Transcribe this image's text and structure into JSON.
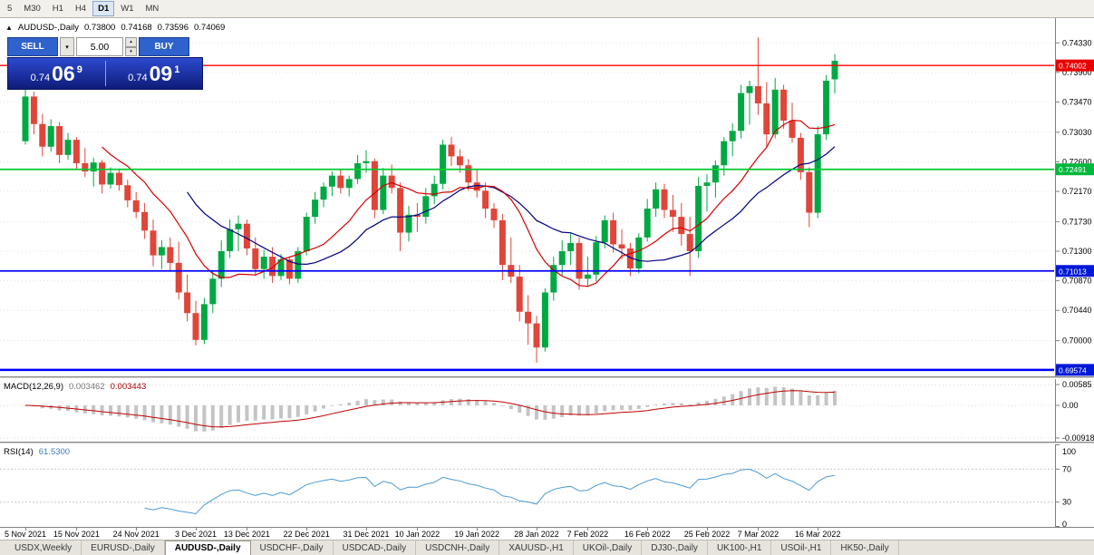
{
  "toolbar": {
    "timeframes": [
      "5",
      "M30",
      "H1",
      "H4",
      "D1",
      "W1",
      "MN"
    ],
    "active": "D1"
  },
  "header": {
    "symbol": "AUDUSD-,Daily",
    "open": "0.73800",
    "high": "0.74168",
    "low": "0.73596",
    "close": "0.74069"
  },
  "trade_widget": {
    "sell_label": "SELL",
    "buy_label": "BUY",
    "volume": "5.00",
    "sell_price_base": "0.74",
    "sell_price_pips": "06",
    "sell_price_point": "9",
    "buy_price_base": "0.74",
    "buy_price_pips": "09",
    "buy_price_point": "1"
  },
  "price_scale": {
    "ticks": [
      "0.74330",
      "0.73900",
      "0.73470",
      "0.73030",
      "0.72600",
      "0.72170",
      "0.71730",
      "0.71300",
      "0.70870",
      "0.70440",
      "0.70000"
    ],
    "badges": [
      {
        "value": "0.74002",
        "price": 0.74002,
        "color": "#e80000"
      },
      {
        "value": "0.72491",
        "price": 0.72491,
        "color": "#00b93c"
      },
      {
        "value": "0.71013",
        "price": 0.71013,
        "color": "#0018d8"
      },
      {
        "value": "0.69574",
        "price": 0.69574,
        "color": "#0018d8"
      }
    ]
  },
  "hlines": [
    {
      "name": "resistance-line-red",
      "price": 0.74002,
      "color": "#ff0000",
      "width": 1.4
    },
    {
      "name": "support-line-green",
      "price": 0.72491,
      "color": "#00c832",
      "width": 1.8
    },
    {
      "name": "support-line-blue",
      "price": 0.71013,
      "color": "#0000ff",
      "width": 1.8
    },
    {
      "name": "support-line-lower-blue",
      "price": 0.69574,
      "color": "#0000ff",
      "width": 2.5
    }
  ],
  "macd_panel": {
    "label": "MACD(12,26,9)",
    "main_value": "0.003462",
    "signal_value": "0.003443",
    "scale_labels": [
      "0.00585",
      "0.00",
      "-0.00918"
    ],
    "scale_values": [
      0.00585,
      0,
      -0.00918
    ]
  },
  "rsi_panel": {
    "label": "RSI(14)",
    "value": "61.5300",
    "scale_labels": [
      "100",
      "70",
      "30",
      "0"
    ],
    "scale_values": [
      100,
      70,
      30,
      0
    ],
    "level_lines": [
      70,
      30
    ]
  },
  "time_axis": [
    {
      "i": 0,
      "label": "5 Nov 2021"
    },
    {
      "i": 6,
      "label": "15 Nov 2021"
    },
    {
      "i": 13,
      "label": "24 Nov 2021"
    },
    {
      "i": 20,
      "label": "3 Dec 2021"
    },
    {
      "i": 26,
      "label": "13 Dec 2021"
    },
    {
      "i": 33,
      "label": "22 Dec 2021"
    },
    {
      "i": 40,
      "label": "31 Dec 2021"
    },
    {
      "i": 46,
      "label": "10 Jan 2022"
    },
    {
      "i": 53,
      "label": "19 Jan 2022"
    },
    {
      "i": 60,
      "label": "28 Jan 2022"
    },
    {
      "i": 66,
      "label": "7 Feb 2022"
    },
    {
      "i": 73,
      "label": "16 Feb 2022"
    },
    {
      "i": 80,
      "label": "25 Feb 2022"
    },
    {
      "i": 86,
      "label": "7 Mar 2022"
    },
    {
      "i": 93,
      "label": "16 Mar 2022"
    }
  ],
  "tabs": [
    "USDX,Weekly",
    "EURUSD-,Daily",
    "AUDUSD-,Daily",
    "USDCHF-,Daily",
    "USDCAD-,Daily",
    "USDCNH-,Daily",
    "XAUUSD-,H1",
    "UKOil-,Daily",
    "DJ30-,Daily",
    "UK100-,H1",
    "USOil-,H1",
    "HK50-,Daily"
  ],
  "active_tab": "AUDUSD-,Daily",
  "chart_data": {
    "type": "candlestick",
    "symbol": "AUDUSD-",
    "timeframe": "Daily",
    "ohlc_current": {
      "open": 0.738,
      "high": 0.74168,
      "low": 0.73596,
      "close": 0.74069
    },
    "price_top": 0.7469,
    "price_bottom": 0.6948,
    "ma_fast_period": 10,
    "ma_slow_period": 20,
    "macd_params": [
      12,
      26,
      9
    ],
    "rsi_period": 14,
    "colors": {
      "bull": "#00a843",
      "bear": "#e0453a",
      "ma_fast": "#d40000",
      "ma_slow": "#000080",
      "macd_hist": "#c4c4c4",
      "macd_signal": "#c00000",
      "rsi_line": "#4f9ad2",
      "grid": "#e3e3e3"
    },
    "candles": [
      [
        0.729,
        0.7365,
        0.7285,
        0.7355
      ],
      [
        0.7355,
        0.7362,
        0.73,
        0.7315
      ],
      [
        0.7315,
        0.733,
        0.7268,
        0.7282
      ],
      [
        0.7282,
        0.7322,
        0.7275,
        0.7312
      ],
      [
        0.7312,
        0.7318,
        0.7258,
        0.727
      ],
      [
        0.727,
        0.7302,
        0.7263,
        0.7292
      ],
      [
        0.7292,
        0.7296,
        0.7248,
        0.7258
      ],
      [
        0.7258,
        0.728,
        0.7238,
        0.7246
      ],
      [
        0.7246,
        0.7266,
        0.7224,
        0.7259
      ],
      [
        0.7259,
        0.7263,
        0.7214,
        0.7227
      ],
      [
        0.7227,
        0.7252,
        0.7221,
        0.7244
      ],
      [
        0.7244,
        0.7248,
        0.7218,
        0.7226
      ],
      [
        0.7226,
        0.7234,
        0.7194,
        0.7204
      ],
      [
        0.7204,
        0.7216,
        0.7178,
        0.7187
      ],
      [
        0.7187,
        0.72,
        0.7148,
        0.716
      ],
      [
        0.716,
        0.7176,
        0.7108,
        0.7124
      ],
      [
        0.7124,
        0.7146,
        0.7104,
        0.7136
      ],
      [
        0.7136,
        0.715,
        0.71,
        0.7113
      ],
      [
        0.7113,
        0.7144,
        0.706,
        0.707
      ],
      [
        0.707,
        0.7096,
        0.7028,
        0.704
      ],
      [
        0.704,
        0.7058,
        0.6993,
        0.7001
      ],
      [
        0.7001,
        0.7062,
        0.6995,
        0.7053
      ],
      [
        0.7053,
        0.7102,
        0.704,
        0.709
      ],
      [
        0.709,
        0.7146,
        0.7078,
        0.713
      ],
      [
        0.713,
        0.7176,
        0.712,
        0.7162
      ],
      [
        0.7162,
        0.7182,
        0.713,
        0.717
      ],
      [
        0.717,
        0.7176,
        0.7124,
        0.7134
      ],
      [
        0.7134,
        0.715,
        0.7094,
        0.7104
      ],
      [
        0.7104,
        0.7132,
        0.709,
        0.7122
      ],
      [
        0.7122,
        0.7136,
        0.7084,
        0.7094
      ],
      [
        0.7094,
        0.7126,
        0.7088,
        0.7118
      ],
      [
        0.7118,
        0.7122,
        0.7082,
        0.709
      ],
      [
        0.709,
        0.7136,
        0.7084,
        0.713
      ],
      [
        0.713,
        0.7186,
        0.7124,
        0.718
      ],
      [
        0.718,
        0.7216,
        0.717,
        0.7205
      ],
      [
        0.7205,
        0.723,
        0.7194,
        0.7224
      ],
      [
        0.7224,
        0.7246,
        0.721,
        0.724
      ],
      [
        0.724,
        0.725,
        0.7214,
        0.7222
      ],
      [
        0.7222,
        0.724,
        0.721,
        0.7235
      ],
      [
        0.7235,
        0.727,
        0.7228,
        0.7258
      ],
      [
        0.7258,
        0.7277,
        0.7244,
        0.7261
      ],
      [
        0.7261,
        0.7265,
        0.7178,
        0.719
      ],
      [
        0.719,
        0.7251,
        0.7184,
        0.724
      ],
      [
        0.724,
        0.7256,
        0.7214,
        0.7222
      ],
      [
        0.7222,
        0.723,
        0.713,
        0.7157
      ],
      [
        0.7157,
        0.7196,
        0.7144,
        0.7183
      ],
      [
        0.7183,
        0.72,
        0.7158,
        0.718
      ],
      [
        0.718,
        0.7222,
        0.717,
        0.721
      ],
      [
        0.721,
        0.724,
        0.7198,
        0.7228
      ],
      [
        0.7228,
        0.7292,
        0.722,
        0.7285
      ],
      [
        0.7285,
        0.7296,
        0.7254,
        0.7268
      ],
      [
        0.7268,
        0.7278,
        0.7244,
        0.7255
      ],
      [
        0.7255,
        0.7264,
        0.7218,
        0.723
      ],
      [
        0.723,
        0.725,
        0.7208,
        0.7218
      ],
      [
        0.7218,
        0.723,
        0.7178,
        0.7192
      ],
      [
        0.7192,
        0.72,
        0.7164,
        0.7175
      ],
      [
        0.7175,
        0.7184,
        0.7088,
        0.711
      ],
      [
        0.711,
        0.715,
        0.7084,
        0.7093
      ],
      [
        0.7093,
        0.711,
        0.7028,
        0.7042
      ],
      [
        0.7042,
        0.7066,
        0.6994,
        0.7025
      ],
      [
        0.7025,
        0.7036,
        0.6968,
        0.699
      ],
      [
        0.699,
        0.7076,
        0.6984,
        0.707
      ],
      [
        0.707,
        0.7122,
        0.7058,
        0.711
      ],
      [
        0.711,
        0.7146,
        0.7094,
        0.713
      ],
      [
        0.713,
        0.7156,
        0.711,
        0.7142
      ],
      [
        0.7142,
        0.715,
        0.7074,
        0.709
      ],
      [
        0.709,
        0.7122,
        0.7078,
        0.7096
      ],
      [
        0.7096,
        0.7152,
        0.7086,
        0.7143
      ],
      [
        0.7143,
        0.7182,
        0.7134,
        0.7175
      ],
      [
        0.7175,
        0.7186,
        0.7128,
        0.714
      ],
      [
        0.714,
        0.7162,
        0.7118,
        0.7134
      ],
      [
        0.7134,
        0.7142,
        0.7094,
        0.7105
      ],
      [
        0.7105,
        0.7156,
        0.7098,
        0.715
      ],
      [
        0.715,
        0.7206,
        0.7144,
        0.7192
      ],
      [
        0.7192,
        0.723,
        0.718,
        0.722
      ],
      [
        0.722,
        0.7228,
        0.7178,
        0.719
      ],
      [
        0.719,
        0.7212,
        0.7158,
        0.718
      ],
      [
        0.718,
        0.72,
        0.7138,
        0.7155
      ],
      [
        0.7155,
        0.718,
        0.7094,
        0.713
      ],
      [
        0.713,
        0.7238,
        0.712,
        0.7225
      ],
      [
        0.7225,
        0.7242,
        0.7188,
        0.723
      ],
      [
        0.723,
        0.7262,
        0.7208,
        0.7255
      ],
      [
        0.7255,
        0.7296,
        0.724,
        0.729
      ],
      [
        0.729,
        0.7316,
        0.7268,
        0.7305
      ],
      [
        0.7305,
        0.7372,
        0.7294,
        0.736
      ],
      [
        0.736,
        0.7378,
        0.7314,
        0.737
      ],
      [
        0.737,
        0.7441,
        0.7328,
        0.7345
      ],
      [
        0.7345,
        0.7376,
        0.7282,
        0.73
      ],
      [
        0.73,
        0.7382,
        0.7294,
        0.7365
      ],
      [
        0.7365,
        0.7372,
        0.7308,
        0.732
      ],
      [
        0.732,
        0.7346,
        0.7288,
        0.7295
      ],
      [
        0.7295,
        0.7302,
        0.7234,
        0.7245
      ],
      [
        0.7245,
        0.7252,
        0.7165,
        0.7186
      ],
      [
        0.7186,
        0.7312,
        0.7178,
        0.73
      ],
      [
        0.73,
        0.7386,
        0.7292,
        0.7378
      ],
      [
        0.738,
        0.74168,
        0.73596,
        0.74069
      ]
    ]
  }
}
